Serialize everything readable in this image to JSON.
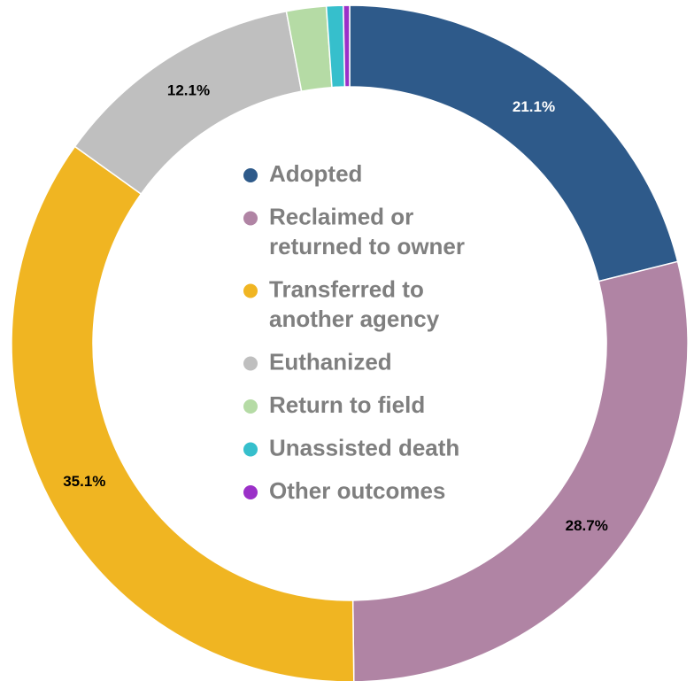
{
  "chart_data": {
    "type": "pie",
    "variant": "donut",
    "title": "",
    "series": [
      {
        "name": "Adopted",
        "value": 21.1,
        "label": "21.1%",
        "color": "#2e5a8a",
        "label_color": "#ffffff"
      },
      {
        "name": "Reclaimed or returned to owner",
        "value": 28.7,
        "label": "28.7%",
        "color": "#b084a4",
        "label_color": "#000000"
      },
      {
        "name": "Transferred to another agency",
        "value": 35.1,
        "label": "35.1%",
        "color": "#f0b522",
        "label_color": "#000000"
      },
      {
        "name": "Euthanized",
        "value": 12.1,
        "label": "12.1%",
        "color": "#bfbfbf",
        "label_color": "#000000"
      },
      {
        "name": "Return to field",
        "value": 1.9,
        "label": "",
        "color": "#b5dba5",
        "label_color": "#000000"
      },
      {
        "name": "Unassisted death",
        "value": 0.8,
        "label": "",
        "color": "#36bfcc",
        "label_color": "#000000"
      },
      {
        "name": "Other outcomes",
        "value": 0.3,
        "label": "",
        "color": "#9b30c8",
        "label_color": "#000000"
      }
    ],
    "legend": {
      "placement": "center",
      "items": [
        {
          "lines": [
            "Adopted"
          ]
        },
        {
          "lines": [
            "Reclaimed or",
            "returned to owner"
          ]
        },
        {
          "lines": [
            "Transferred to",
            "another agency"
          ]
        },
        {
          "lines": [
            "Euthanized"
          ]
        },
        {
          "lines": [
            "Return to field"
          ]
        },
        {
          "lines": [
            "Unassisted death"
          ]
        },
        {
          "lines": [
            "Other outcomes"
          ]
        }
      ]
    }
  }
}
